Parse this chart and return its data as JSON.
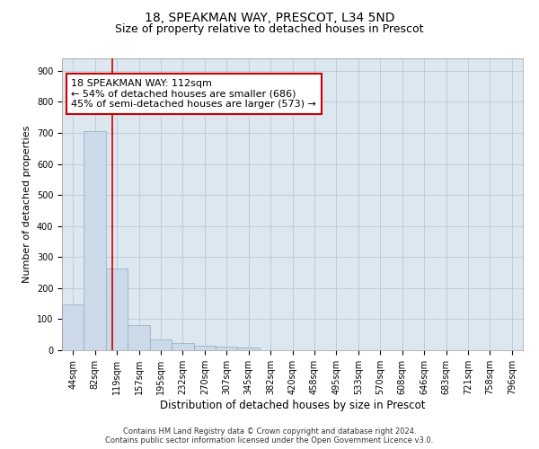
{
  "title_line1": "18, SPEAKMAN WAY, PRESCOT, L34 5ND",
  "title_line2": "Size of property relative to detached houses in Prescot",
  "xlabel": "Distribution of detached houses by size in Prescot",
  "ylabel": "Number of detached properties",
  "bar_color": "#ccd9e8",
  "bar_edge_color": "#8aaec8",
  "grid_color": "#b8c8d8",
  "background_color": "#dde7f0",
  "bin_labels": [
    "44sqm",
    "82sqm",
    "119sqm",
    "157sqm",
    "195sqm",
    "232sqm",
    "270sqm",
    "307sqm",
    "345sqm",
    "382sqm",
    "420sqm",
    "458sqm",
    "495sqm",
    "533sqm",
    "570sqm",
    "608sqm",
    "646sqm",
    "683sqm",
    "721sqm",
    "758sqm",
    "796sqm"
  ],
  "bar_heights": [
    147,
    706,
    264,
    82,
    36,
    22,
    15,
    12,
    10,
    0,
    0,
    0,
    0,
    0,
    0,
    0,
    0,
    0,
    0,
    0,
    0
  ],
  "ylim": [
    0,
    940
  ],
  "yticks": [
    0,
    100,
    200,
    300,
    400,
    500,
    600,
    700,
    800,
    900
  ],
  "annotation_text": "18 SPEAKMAN WAY: 112sqm\n← 54% of detached houses are smaller (686)\n45% of semi-detached houses are larger (573) →",
  "annotation_box_color": "white",
  "annotation_box_edgecolor": "#cc0000",
  "vline_color": "#cc0000",
  "footer_text": "Contains HM Land Registry data © Crown copyright and database right 2024.\nContains public sector information licensed under the Open Government Licence v3.0.",
  "title_fontsize": 10,
  "subtitle_fontsize": 9,
  "tick_fontsize": 7,
  "xlabel_fontsize": 8.5,
  "ylabel_fontsize": 8,
  "annotation_fontsize": 8,
  "footer_fontsize": 6
}
